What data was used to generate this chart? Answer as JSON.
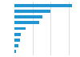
{
  "values": [
    1600,
    1000,
    770,
    680,
    310,
    175,
    155,
    115,
    50
  ],
  "bar_color": "#2196d3",
  "background_color": "#ffffff",
  "grid_color": "#d0d0d0",
  "xlim": [
    0,
    1750
  ]
}
